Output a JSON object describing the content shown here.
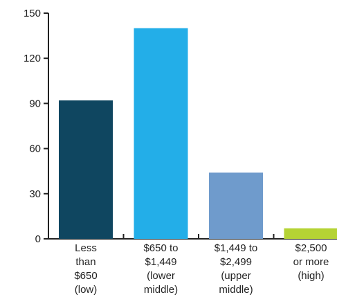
{
  "chart_data": {
    "type": "bar",
    "title": "",
    "xlabel": "",
    "ylabel": "",
    "ylim": [
      0,
      150
    ],
    "yticks": [
      0,
      30,
      60,
      90,
      120,
      150
    ],
    "grid": false,
    "legend": "none",
    "categories": [
      [
        "Less",
        "than",
        "$650",
        "(low)"
      ],
      [
        "$650 to",
        "$1,449",
        "(lower",
        "middle)"
      ],
      [
        "$1,449 to",
        "$2,499",
        "(upper",
        "middle)"
      ],
      [
        "$2,500",
        "or more",
        "(high)"
      ]
    ],
    "values": [
      92,
      140,
      44,
      7
    ],
    "colors": [
      "#0f4660",
      "#23aee8",
      "#6f9bcc",
      "#b5d334"
    ]
  }
}
